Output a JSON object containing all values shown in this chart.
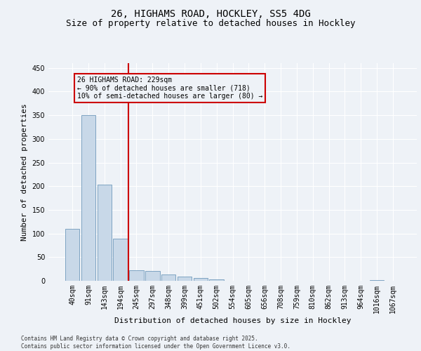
{
  "title_line1": "26, HIGHAMS ROAD, HOCKLEY, SS5 4DG",
  "title_line2": "Size of property relative to detached houses in Hockley",
  "xlabel": "Distribution of detached houses by size in Hockley",
  "ylabel": "Number of detached properties",
  "bar_labels": [
    "40sqm",
    "91sqm",
    "143sqm",
    "194sqm",
    "245sqm",
    "297sqm",
    "348sqm",
    "399sqm",
    "451sqm",
    "502sqm",
    "554sqm",
    "605sqm",
    "656sqm",
    "708sqm",
    "759sqm",
    "810sqm",
    "862sqm",
    "913sqm",
    "964sqm",
    "1016sqm",
    "1067sqm"
  ],
  "bar_values": [
    110,
    350,
    204,
    89,
    22,
    21,
    13,
    9,
    6,
    3,
    0,
    0,
    0,
    0,
    0,
    0,
    0,
    0,
    0,
    2,
    0
  ],
  "bar_color": "#c8d8e8",
  "bar_edge_color": "#5a8ab0",
  "annotation_text": "26 HIGHAMS ROAD: 229sqm\n← 90% of detached houses are smaller (718)\n10% of semi-detached houses are larger (80) →",
  "annotation_box_color": "#cc0000",
  "vline_x_index": 3.5,
  "vline_color": "#cc0000",
  "ylim": [
    0,
    460
  ],
  "yticks": [
    0,
    50,
    100,
    150,
    200,
    250,
    300,
    350,
    400,
    450
  ],
  "background_color": "#eef2f7",
  "grid_color": "#ffffff",
  "footer_text": "Contains HM Land Registry data © Crown copyright and database right 2025.\nContains public sector information licensed under the Open Government Licence v3.0.",
  "title_fontsize": 10,
  "subtitle_fontsize": 9,
  "annotation_fontsize": 7,
  "axis_label_fontsize": 8,
  "tick_fontsize": 7,
  "ylabel_fontsize": 8
}
